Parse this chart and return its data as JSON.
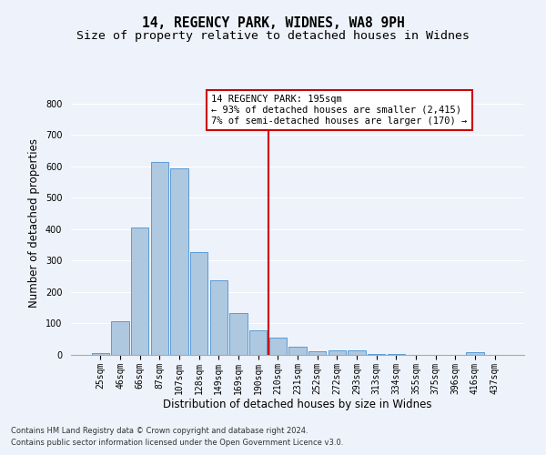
{
  "title": "14, REGENCY PARK, WIDNES, WA8 9PH",
  "subtitle": "Size of property relative to detached houses in Widnes",
  "xlabel": "Distribution of detached houses by size in Widnes",
  "ylabel": "Number of detached properties",
  "footnote1": "Contains HM Land Registry data © Crown copyright and database right 2024.",
  "footnote2": "Contains public sector information licensed under the Open Government Licence v3.0.",
  "bar_labels": [
    "25sqm",
    "46sqm",
    "66sqm",
    "87sqm",
    "107sqm",
    "128sqm",
    "149sqm",
    "169sqm",
    "190sqm",
    "210sqm",
    "231sqm",
    "252sqm",
    "272sqm",
    "293sqm",
    "313sqm",
    "334sqm",
    "355sqm",
    "375sqm",
    "396sqm",
    "416sqm",
    "437sqm"
  ],
  "bar_values": [
    7,
    108,
    405,
    615,
    593,
    328,
    237,
    133,
    79,
    56,
    25,
    12,
    15,
    15,
    4,
    3,
    0,
    0,
    0,
    8,
    0
  ],
  "bar_color": "#aec8e0",
  "bar_edge_color": "#5b9bd5",
  "vline_color": "#cc0000",
  "annotation_title": "14 REGENCY PARK: 195sqm",
  "annotation_line1": "← 93% of detached houses are smaller (2,415)",
  "annotation_line2": "7% of semi-detached houses are larger (170) →",
  "ylim": [
    0,
    840
  ],
  "yticks": [
    0,
    100,
    200,
    300,
    400,
    500,
    600,
    700,
    800
  ],
  "background_color": "#eef2fa",
  "grid_color": "#ffffff",
  "title_fontsize": 10.5,
  "subtitle_fontsize": 9.5,
  "axis_label_fontsize": 8.5,
  "tick_fontsize": 7,
  "footnote_fontsize": 6,
  "annotation_fontsize": 7.5
}
